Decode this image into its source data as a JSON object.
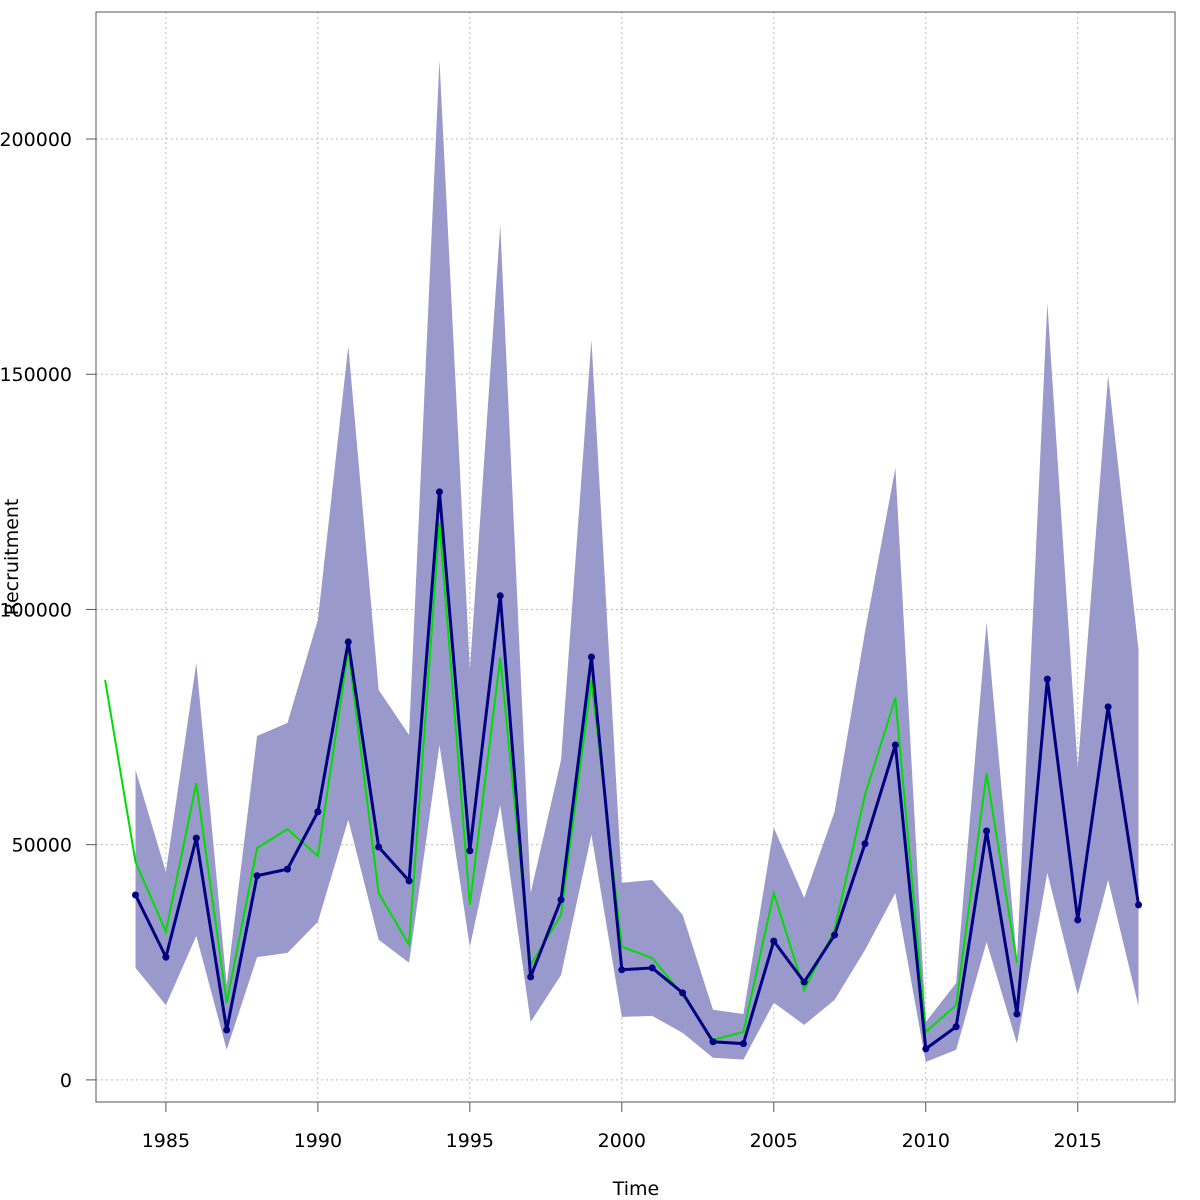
{
  "chart_data": {
    "type": "line",
    "x_label": "Time",
    "y_label": "Recruitment",
    "x": [
      1983,
      1984,
      1985,
      1986,
      1987,
      1988,
      1989,
      1990,
      1991,
      1992,
      1993,
      1994,
      1995,
      1996,
      1997,
      1998,
      1999,
      2000,
      2001,
      2002,
      2003,
      2004,
      2005,
      2006,
      2007,
      2008,
      2009,
      2010,
      2011,
      2012,
      2013,
      2014,
      2015,
      2016,
      2017
    ],
    "band": {
      "color": "#9999cc",
      "upper": [
        null,
        65900,
        44200,
        88600,
        20200,
        73100,
        75900,
        97800,
        156000,
        82900,
        73300,
        216800,
        87100,
        181700,
        39700,
        68000,
        157300,
        41900,
        42500,
        35100,
        14900,
        14000,
        53600,
        38700,
        57000,
        95200,
        130100,
        12300,
        20600,
        97300,
        25500,
        165100,
        66300,
        149800,
        91400
      ],
      "lower": [
        null,
        23800,
        15900,
        30600,
        6400,
        26100,
        27000,
        33600,
        55300,
        29800,
        24900,
        71200,
        28300,
        58400,
        12300,
        22300,
        52100,
        13400,
        13600,
        10000,
        4700,
        4300,
        16400,
        11700,
        17000,
        27600,
        39700,
        3800,
        6400,
        29300,
        7700,
        44000,
        18100,
        42500,
        15700
      ]
    },
    "series": [
      {
        "color": "#00dd00",
        "markers": false,
        "values": [
          85000,
          46300,
          31500,
          63100,
          16400,
          49300,
          53300,
          47600,
          91400,
          39700,
          28700,
          118400,
          37200,
          89700,
          24400,
          35100,
          85000,
          28300,
          25900,
          18100,
          8500,
          10200,
          39700,
          19100,
          31900,
          60600,
          81200,
          10200,
          15900,
          65200,
          24900,
          null,
          null,
          null,
          null
        ]
      },
      {
        "color": "#000080",
        "markers": true,
        "values": [
          null,
          39300,
          26100,
          51400,
          10600,
          43400,
          44800,
          57000,
          93100,
          49500,
          42300,
          125000,
          48700,
          102900,
          21900,
          38300,
          89900,
          23400,
          23800,
          18500,
          8100,
          7700,
          29500,
          20800,
          30800,
          50200,
          71200,
          6600,
          11300,
          52900,
          14000,
          85200,
          34000,
          79300,
          37200
        ]
      }
    ],
    "xlim": [
      1982.7,
      2018.2
    ],
    "xticks": [
      1985,
      1990,
      1995,
      2000,
      2005,
      2010,
      2015
    ],
    "ylim": [
      -4700,
      227000
    ],
    "yticks": [
      0,
      50000,
      100000,
      150000,
      200000
    ],
    "grid": true
  }
}
